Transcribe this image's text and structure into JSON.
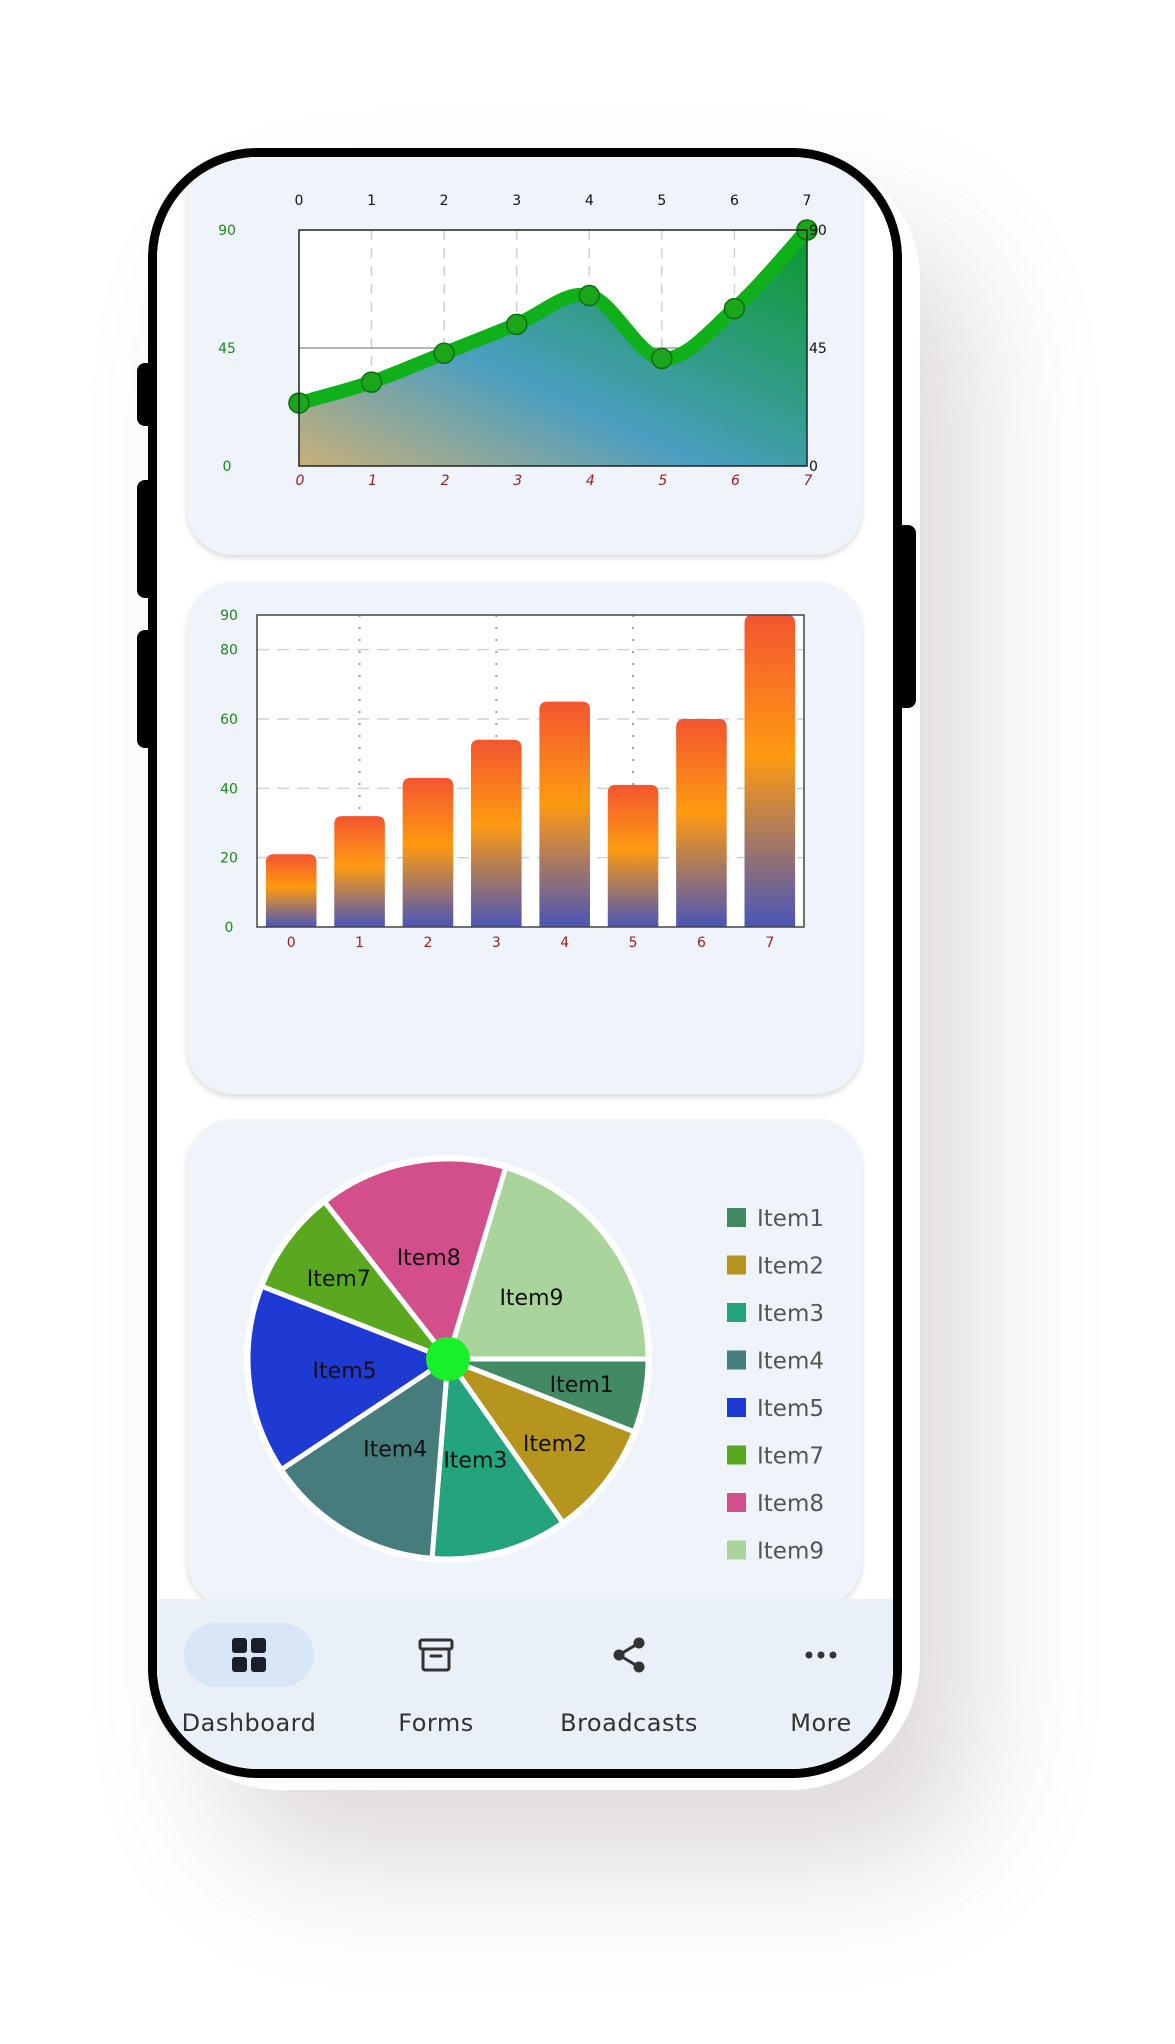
{
  "chart_data": [
    {
      "type": "area",
      "x": [
        0,
        1,
        2,
        3,
        4,
        5,
        6,
        7
      ],
      "y": [
        24,
        32,
        43,
        54,
        65,
        41,
        60,
        90
      ],
      "ylim": [
        0,
        90
      ],
      "xlim": [
        0,
        7
      ],
      "y_ticks": [
        "0",
        "45",
        "90"
      ],
      "x_ticks": [
        "0",
        "1",
        "2",
        "3",
        "4",
        "5",
        "6",
        "7"
      ],
      "colors": {
        "line": "#0fb01a",
        "marker": "#1aa51a",
        "fill_a": "#c9b07a",
        "fill_b": "#4a9ec0",
        "fill_c": "#0a9a2a"
      },
      "grid": true
    },
    {
      "type": "bar",
      "categories": [
        "0",
        "1",
        "2",
        "3",
        "4",
        "5",
        "6",
        "7"
      ],
      "values": [
        21,
        32,
        43,
        54,
        65,
        41,
        60,
        90
      ],
      "ylim": [
        0,
        90
      ],
      "y_ticks": [
        "0",
        "20",
        "40",
        "60",
        "80",
        "90"
      ],
      "colors": {
        "top": "#f25530",
        "mid": "#ff9a10",
        "bottom": "#4a56b8"
      },
      "grid": true
    },
    {
      "type": "pie",
      "legend_position": "right",
      "slices": [
        {
          "label": "Item1",
          "value": 7,
          "color": "#418a63"
        },
        {
          "label": "Item2",
          "value": 11,
          "color": "#b6951f"
        },
        {
          "label": "Item3",
          "value": 13,
          "color": "#23a47c"
        },
        {
          "label": "Item4",
          "value": 17,
          "color": "#467c7c"
        },
        {
          "label": "Item5",
          "value": 18,
          "color": "#1f3ad2"
        },
        {
          "label": "Item7",
          "value": 10,
          "color": "#5aa81f"
        },
        {
          "label": "Item8",
          "value": 18,
          "color": "#d24f8b"
        },
        {
          "label": "Item9",
          "value": 24,
          "color": "#a9d49b"
        }
      ],
      "center_color": "#18f02a"
    }
  ],
  "nav": {
    "items": [
      {
        "label": "Dashboard",
        "icon": "grid-icon",
        "active": true
      },
      {
        "label": "Forms",
        "icon": "archive-icon",
        "active": false
      },
      {
        "label": "Broadcasts",
        "icon": "share-icon",
        "active": false
      },
      {
        "label": "More",
        "icon": "more-icon",
        "active": false
      }
    ]
  }
}
